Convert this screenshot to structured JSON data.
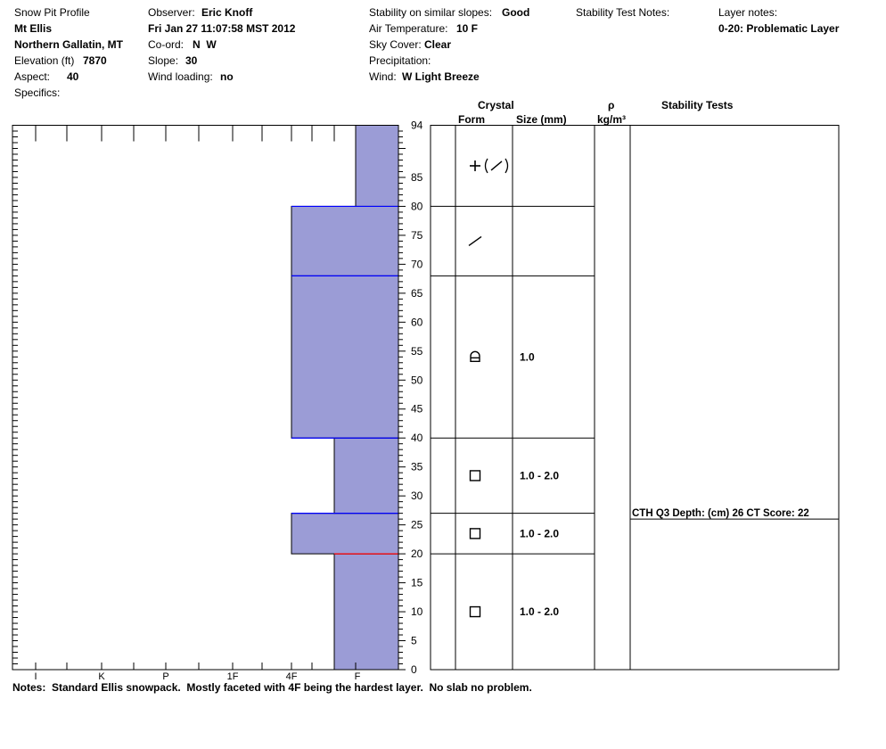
{
  "header": {
    "col1": {
      "title": "Snow Pit Profile",
      "location": "Mt Ellis",
      "region": "Northern Gallatin, MT",
      "elevation_label": "Elevation (ft)",
      "elevation_value": "7870",
      "aspect_label": "Aspect:",
      "aspect_value": "40",
      "specifics_label": "Specifics:"
    },
    "col2": {
      "observer_label": "Observer:",
      "observer_value": "Eric Knoff",
      "datetime": "Fri Jan 27 11:07:58 MST 2012",
      "coord_label": "Co-ord:",
      "coord_value": "N  W",
      "slope_label": "Slope:",
      "slope_value": "30",
      "wind_loading_label": "Wind loading:",
      "wind_loading_value": "no"
    },
    "col3": {
      "stability_label": "Stability on similar slopes:",
      "stability_value": "Good",
      "air_temp_label": "Air Temperature:",
      "air_temp_value": "10 F",
      "sky_label": "Sky Cover:",
      "sky_value": "Clear",
      "precip_label": "Precipitation:",
      "wind_label": "Wind:",
      "wind_value": "W Light Breeze"
    },
    "col4": {
      "stability_notes_label": "Stability Test Notes:"
    },
    "col5": {
      "layer_notes_label": "Layer notes:",
      "layer_notes_value": "0-20: Problematic Layer"
    }
  },
  "table_headers": {
    "crystal": "Crystal",
    "form": "Form",
    "size": "Size (mm)",
    "rho": "ρ",
    "density_unit": "kg/m³",
    "stability_tests": "Stability Tests"
  },
  "notes": "Notes:  Standard Ellis snowpack.  Mostly faceted with 4F being the hardest layer.  No slab no problem.",
  "chart_data": {
    "type": "bar",
    "title": "",
    "xlabel": "",
    "ylabel": "",
    "ylim": [
      0,
      94
    ],
    "y_ticks": [
      0,
      5,
      10,
      15,
      20,
      25,
      30,
      35,
      40,
      45,
      50,
      55,
      60,
      65,
      70,
      75,
      80,
      85,
      94
    ],
    "hardness_scale": [
      "I",
      "K",
      "P",
      "1F",
      "4F",
      "F"
    ],
    "fill_color": "#9b9cd6",
    "boundary_color": "#0000ff",
    "weak_layer_color": "#ff0000",
    "layers": [
      {
        "bottom": 0,
        "top": 20,
        "hardness": "F",
        "form": "square",
        "size": "1.0 - 2.0"
      },
      {
        "bottom": 20,
        "top": 27,
        "hardness": "4F",
        "form": "square",
        "size": "1.0 - 2.0"
      },
      {
        "bottom": 27,
        "top": 40,
        "hardness": "F",
        "form": "square",
        "size": "1.0 - 2.0"
      },
      {
        "bottom": 40,
        "top": 68,
        "hardness": "4F",
        "form": "rounding-facet",
        "size": "1.0"
      },
      {
        "bottom": 68,
        "top": 80,
        "hardness": "4F",
        "form": "decomposing",
        "size": ""
      },
      {
        "bottom": 80,
        "top": 94,
        "hardness": "F+",
        "form": "new-snow-decomposing",
        "size": ""
      }
    ],
    "weak_layer_depth": 20,
    "stability_tests": [
      {
        "depth": 26,
        "text": "CTH Q3 Depth: (cm) 26 CT Score: 22"
      }
    ]
  }
}
